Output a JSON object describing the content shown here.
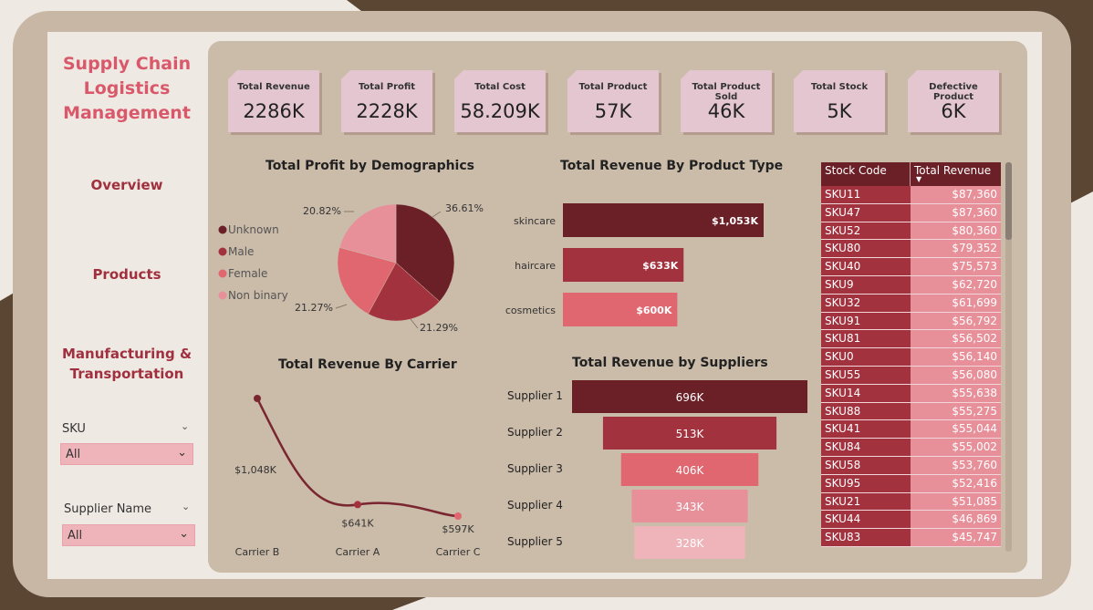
{
  "colors": {
    "background_dark": "#5a4632",
    "frame": "#c9b7a6",
    "panel": "#cbbba9",
    "accent_title": "#d9596b",
    "accent_nav": "#a1303e",
    "kpi_card": "#e3c6d0",
    "series_dark": "#6b1f26",
    "series_mid": "#a3323f",
    "series_light": "#e0666f",
    "series_pale": "#e8909a",
    "series_palest": "#efb3ba"
  },
  "sidebar": {
    "title": "Supply Chain Logistics Management",
    "nav": [
      {
        "label": "Overview"
      },
      {
        "label": "Products"
      },
      {
        "label": "Manufacturing & Transportation"
      }
    ],
    "filters": [
      {
        "label": "SKU",
        "value": "All",
        "icon": "chevron-down-icon"
      },
      {
        "label": "Supplier Name",
        "value": "All",
        "icon": "chevron-down-icon"
      }
    ]
  },
  "kpis": [
    {
      "title": "Total Revenue",
      "value": "2286K"
    },
    {
      "title": "Total Profit",
      "value": "2228K"
    },
    {
      "title": "Total Cost",
      "value": "58.209K"
    },
    {
      "title": "Total Product",
      "value": "57K"
    },
    {
      "title": "Total Product Sold",
      "value": "46K"
    },
    {
      "title": "Total Stock",
      "value": "5K"
    },
    {
      "title": "Defective Product",
      "value": "6K"
    }
  ],
  "chart_data": [
    {
      "type": "pie",
      "title": "Total Profit by Demographics",
      "categories": [
        "Unknown",
        "Male",
        "Female",
        "Non binary"
      ],
      "values": [
        36.61,
        21.29,
        21.27,
        20.82
      ],
      "labels": [
        "36.61%",
        "21.29%",
        "21.27%",
        "20.82%"
      ],
      "colors": [
        "#6b1f26",
        "#a3323f",
        "#e0666f",
        "#e8909a"
      ],
      "legend": "left"
    },
    {
      "type": "bar",
      "title": "Total Revenue By Product Type",
      "orientation": "horizontal",
      "categories": [
        "skincare",
        "haircare",
        "cosmetics"
      ],
      "values": [
        1053,
        633,
        600
      ],
      "labels": [
        "$1,053K",
        "$633K",
        "$600K"
      ],
      "colors": [
        "#6b1f26",
        "#a3323f",
        "#e0666f"
      ]
    },
    {
      "type": "line",
      "title": "Total Revenue By Carrier",
      "categories": [
        "Carrier B",
        "Carrier A",
        "Carrier C"
      ],
      "values": [
        1048,
        641,
        597
      ],
      "labels": [
        "$1,048K",
        "$641K",
        "$597K"
      ],
      "color": "#7a2630"
    },
    {
      "type": "bar",
      "subtype": "funnel",
      "title": "Total Revenue by Suppliers",
      "categories": [
        "Supplier 1",
        "Supplier 2",
        "Supplier 3",
        "Supplier 4",
        "Supplier 5"
      ],
      "values": [
        696,
        513,
        406,
        343,
        328
      ],
      "labels": [
        "696K",
        "513K",
        "406K",
        "343K",
        "328K"
      ],
      "colors": [
        "#6b1f26",
        "#a3323f",
        "#e0666f",
        "#e8909a",
        "#efb3ba"
      ]
    },
    {
      "type": "table",
      "columns": [
        "Stock Code",
        "Total Revenue"
      ],
      "sort": "Total Revenue descending",
      "rows": [
        [
          "SKU11",
          "$87,360"
        ],
        [
          "SKU47",
          "$87,360"
        ],
        [
          "SKU52",
          "$80,360"
        ],
        [
          "SKU80",
          "$79,352"
        ],
        [
          "SKU40",
          "$75,573"
        ],
        [
          "SKU9",
          "$62,720"
        ],
        [
          "SKU32",
          "$61,699"
        ],
        [
          "SKU91",
          "$56,792"
        ],
        [
          "SKU81",
          "$56,502"
        ],
        [
          "SKU0",
          "$56,140"
        ],
        [
          "SKU55",
          "$56,080"
        ],
        [
          "SKU14",
          "$55,638"
        ],
        [
          "SKU88",
          "$55,275"
        ],
        [
          "SKU41",
          "$55,044"
        ],
        [
          "SKU84",
          "$55,002"
        ],
        [
          "SKU58",
          "$53,760"
        ],
        [
          "SKU95",
          "$52,416"
        ],
        [
          "SKU21",
          "$51,085"
        ],
        [
          "SKU44",
          "$46,869"
        ],
        [
          "SKU83",
          "$45,747"
        ]
      ]
    }
  ]
}
